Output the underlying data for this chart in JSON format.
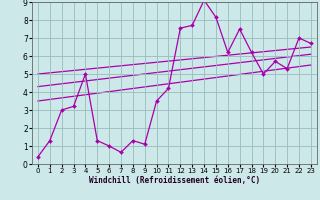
{
  "x_data": [
    0,
    1,
    2,
    3,
    4,
    5,
    6,
    7,
    8,
    9,
    10,
    11,
    12,
    13,
    14,
    15,
    16,
    17,
    18,
    19,
    20,
    21,
    22,
    23
  ],
  "y_main": [
    0.4,
    1.3,
    3.0,
    3.2,
    5.0,
    1.3,
    1.0,
    0.65,
    1.3,
    1.1,
    3.5,
    4.2,
    7.55,
    7.7,
    9.1,
    8.15,
    6.2,
    7.5,
    6.2,
    5.0,
    5.7,
    5.3,
    7.0,
    6.7
  ],
  "trend1_x": [
    0,
    23
  ],
  "trend1_y": [
    5.0,
    6.5
  ],
  "trend2_x": [
    0,
    23
  ],
  "trend2_y": [
    4.3,
    6.1
  ],
  "trend3_x": [
    0,
    23
  ],
  "trend3_y": [
    3.5,
    5.5
  ],
  "xlim": [
    -0.5,
    23.5
  ],
  "ylim": [
    0,
    9
  ],
  "xticks": [
    0,
    1,
    2,
    3,
    4,
    5,
    6,
    7,
    8,
    9,
    10,
    11,
    12,
    13,
    14,
    15,
    16,
    17,
    18,
    19,
    20,
    21,
    22,
    23
  ],
  "yticks": [
    0,
    1,
    2,
    3,
    4,
    5,
    6,
    7,
    8,
    9
  ],
  "xlabel": "Windchill (Refroidissement éolien,°C)",
  "line_color": "#aa00aa",
  "bg_color": "#cce8e8",
  "grid_color": "#99bbbb",
  "marker": "D",
  "marker_size": 2.0,
  "line_width": 0.9,
  "trend_lw": 0.9,
  "tick_fontsize": 5.0,
  "xlabel_fontsize": 5.5
}
